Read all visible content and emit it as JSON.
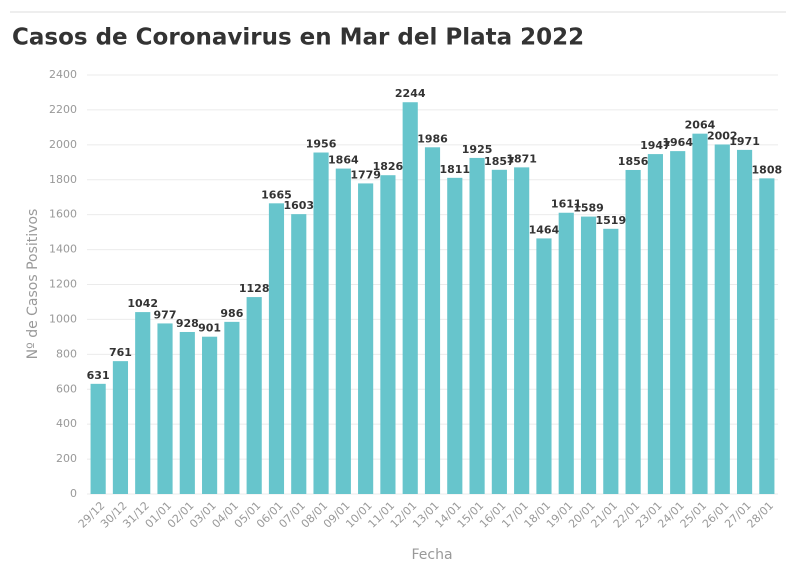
{
  "chart_data": {
    "type": "bar",
    "title": "Casos de Coronavirus en Mar del Plata 2022",
    "xlabel": "Fecha",
    "ylabel": "Nº de Casos Positivos",
    "categories": [
      "29/12",
      "30/12",
      "31/12",
      "01/01",
      "02/01",
      "03/01",
      "04/01",
      "05/01",
      "06/01",
      "07/01",
      "08/01",
      "09/01",
      "10/01",
      "11/01",
      "12/01",
      "13/01",
      "14/01",
      "15/01",
      "16/01",
      "17/01",
      "18/01",
      "19/01",
      "20/01",
      "21/01",
      "22/01",
      "23/01",
      "24/01",
      "25/01",
      "26/01",
      "27/01",
      "28/01"
    ],
    "values": [
      631,
      761,
      1042,
      977,
      928,
      901,
      986,
      1128,
      1665,
      1603,
      1956,
      1864,
      1779,
      1826,
      2244,
      1986,
      1811,
      1925,
      1857,
      1871,
      1464,
      1611,
      1589,
      1519,
      1856,
      1947,
      1964,
      2064,
      2002,
      1971,
      1808
    ],
    "color": "#67c5cc",
    "ylim": [
      0,
      2400
    ],
    "yticks": [
      0,
      200,
      400,
      600,
      800,
      1000,
      1200,
      1400,
      1600,
      1800,
      2000,
      2200,
      2400
    ],
    "grid": true
  }
}
